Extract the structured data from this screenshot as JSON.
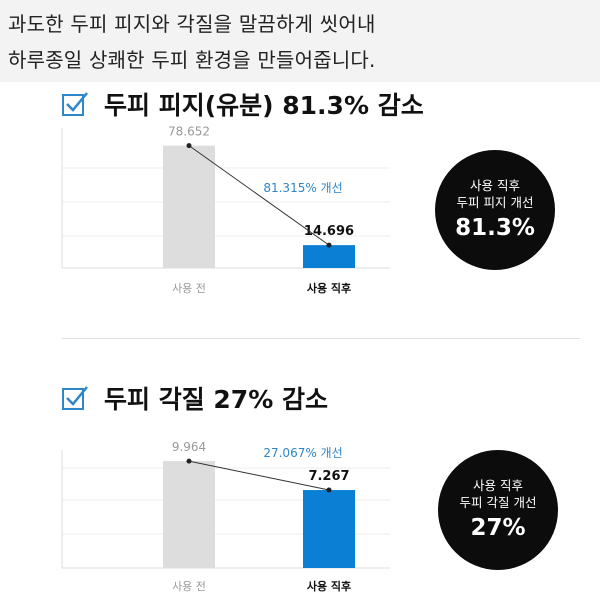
{
  "intro": {
    "line1": "과도한 두피 피지와 각질을 말끔하게 씻어내",
    "line2": "하루종일 상쾌한 두피 환경을 만들어줍니다."
  },
  "colors": {
    "before_bar": "#dddddd",
    "after_bar": "#0a7fd4",
    "improvement_text": "#2f86c8",
    "circle": "#0c0c0c",
    "check": "#2f86c8"
  },
  "sections": [
    {
      "title": "두피 피지(유분) 81.3% 감소",
      "circle": {
        "line1": "사용 직후",
        "line2": "두피 피지 개선",
        "value": "81.3%"
      }
    },
    {
      "title": "두피 각질 27% 감소",
      "circle": {
        "line1": "사용 직후",
        "line2": "두피 각질 개선",
        "value": "27%"
      }
    }
  ],
  "chart_data": [
    {
      "type": "bar",
      "categories": [
        "사용 전",
        "사용 직후"
      ],
      "values": [
        78.652,
        14.696
      ],
      "value_labels": [
        "78.652",
        "14.696"
      ],
      "improvement_label": "81.315% 개선",
      "ylim": [
        0,
        90
      ],
      "grid": true
    },
    {
      "type": "bar",
      "categories": [
        "사용 전",
        "사용 직후"
      ],
      "values": [
        9.964,
        7.267
      ],
      "value_labels": [
        "9.964",
        "7.267"
      ],
      "improvement_label": "27.067% 개선",
      "ylim": [
        0,
        11
      ],
      "grid": true
    }
  ]
}
